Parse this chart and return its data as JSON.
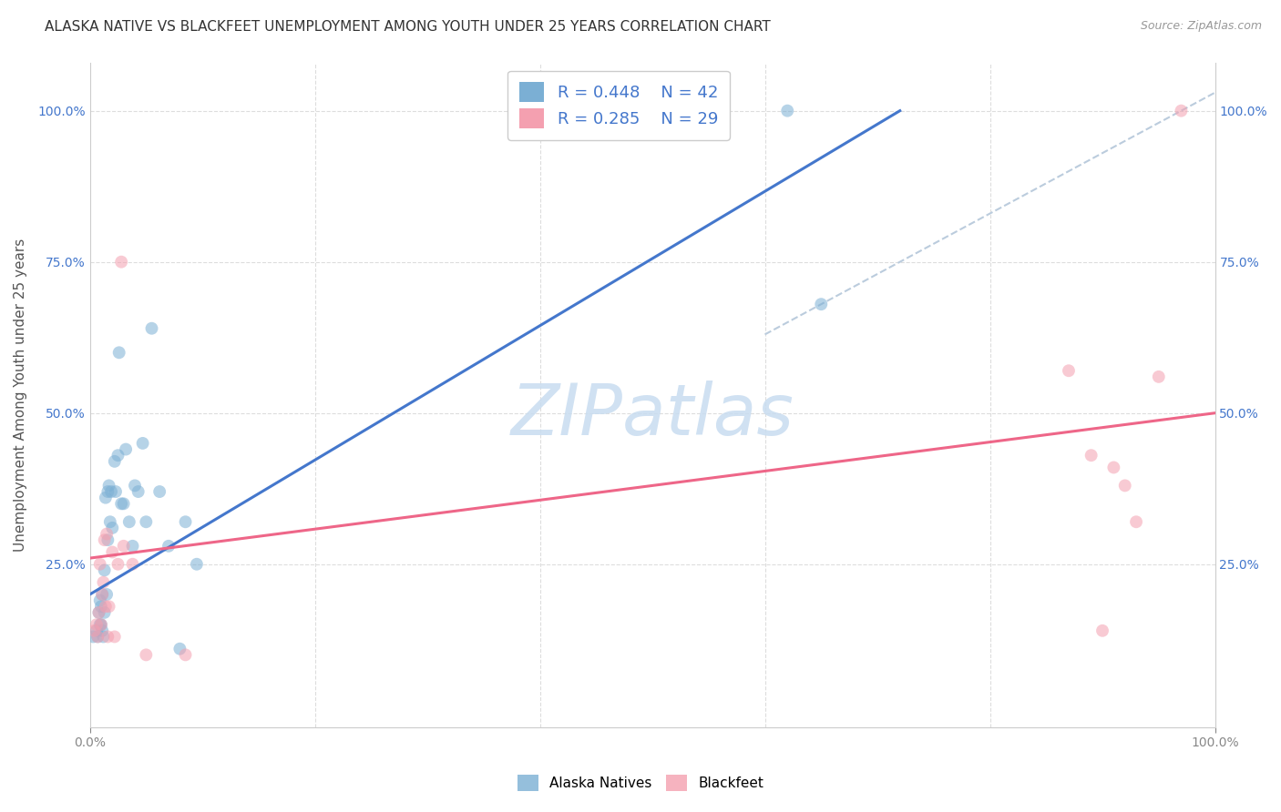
{
  "title": "ALASKA NATIVE VS BLACKFEET UNEMPLOYMENT AMONG YOUTH UNDER 25 YEARS CORRELATION CHART",
  "source": "Source: ZipAtlas.com",
  "ylabel": "Unemployment Among Youth under 25 years",
  "legend_label1": "Alaska Natives",
  "legend_label2": "Blackfeet",
  "r1": "0.448",
  "n1": "42",
  "r2": "0.285",
  "n2": "29",
  "blue_scatter_color": "#7BAFD4",
  "pink_scatter_color": "#F4A0B0",
  "blue_line_color": "#4477CC",
  "pink_line_color": "#EE6688",
  "dashed_line_color": "#BBCCDD",
  "watermark_color": "#C8DCF0",
  "alaska_x": [
    0.003,
    0.006,
    0.007,
    0.008,
    0.009,
    0.009,
    0.01,
    0.01,
    0.011,
    0.011,
    0.012,
    0.013,
    0.013,
    0.014,
    0.015,
    0.016,
    0.016,
    0.017,
    0.018,
    0.019,
    0.02,
    0.022,
    0.023,
    0.025,
    0.026,
    0.028,
    0.03,
    0.032,
    0.035,
    0.038,
    0.04,
    0.043,
    0.047,
    0.05,
    0.055,
    0.062,
    0.07,
    0.08,
    0.085,
    0.095,
    0.62,
    0.65
  ],
  "alaska_y": [
    0.13,
    0.14,
    0.13,
    0.17,
    0.15,
    0.19,
    0.15,
    0.18,
    0.2,
    0.14,
    0.13,
    0.17,
    0.24,
    0.36,
    0.2,
    0.37,
    0.29,
    0.38,
    0.32,
    0.37,
    0.31,
    0.42,
    0.37,
    0.43,
    0.6,
    0.35,
    0.35,
    0.44,
    0.32,
    0.28,
    0.38,
    0.37,
    0.45,
    0.32,
    0.64,
    0.37,
    0.28,
    0.11,
    0.32,
    0.25,
    1.0,
    0.68
  ],
  "blackfeet_x": [
    0.004,
    0.006,
    0.007,
    0.008,
    0.009,
    0.01,
    0.011,
    0.012,
    0.013,
    0.014,
    0.015,
    0.016,
    0.017,
    0.02,
    0.022,
    0.025,
    0.028,
    0.03,
    0.038,
    0.05,
    0.085,
    0.87,
    0.89,
    0.9,
    0.91,
    0.92,
    0.93,
    0.95,
    0.97
  ],
  "blackfeet_y": [
    0.14,
    0.15,
    0.13,
    0.17,
    0.25,
    0.15,
    0.2,
    0.22,
    0.29,
    0.18,
    0.3,
    0.13,
    0.18,
    0.27,
    0.13,
    0.25,
    0.75,
    0.28,
    0.25,
    0.1,
    0.1,
    0.57,
    0.43,
    0.14,
    0.41,
    0.38,
    0.32,
    0.56,
    1.0
  ],
  "blue_line_x": [
    0.0,
    0.72
  ],
  "blue_line_y": [
    0.2,
    1.0
  ],
  "pink_line_x": [
    0.0,
    1.0
  ],
  "pink_line_y": [
    0.26,
    0.5
  ],
  "dash_line_x": [
    0.6,
    1.02
  ],
  "dash_line_y": [
    0.63,
    1.05
  ],
  "xlim": [
    0.0,
    1.0
  ],
  "ylim": [
    -0.02,
    1.08
  ],
  "background_color": "#FFFFFF",
  "title_fontsize": 11,
  "ylabel_fontsize": 11,
  "tick_fontsize": 10,
  "marker_size": 100,
  "marker_alpha": 0.55,
  "legend_fontsize": 13,
  "watermark_fontsize": 56
}
